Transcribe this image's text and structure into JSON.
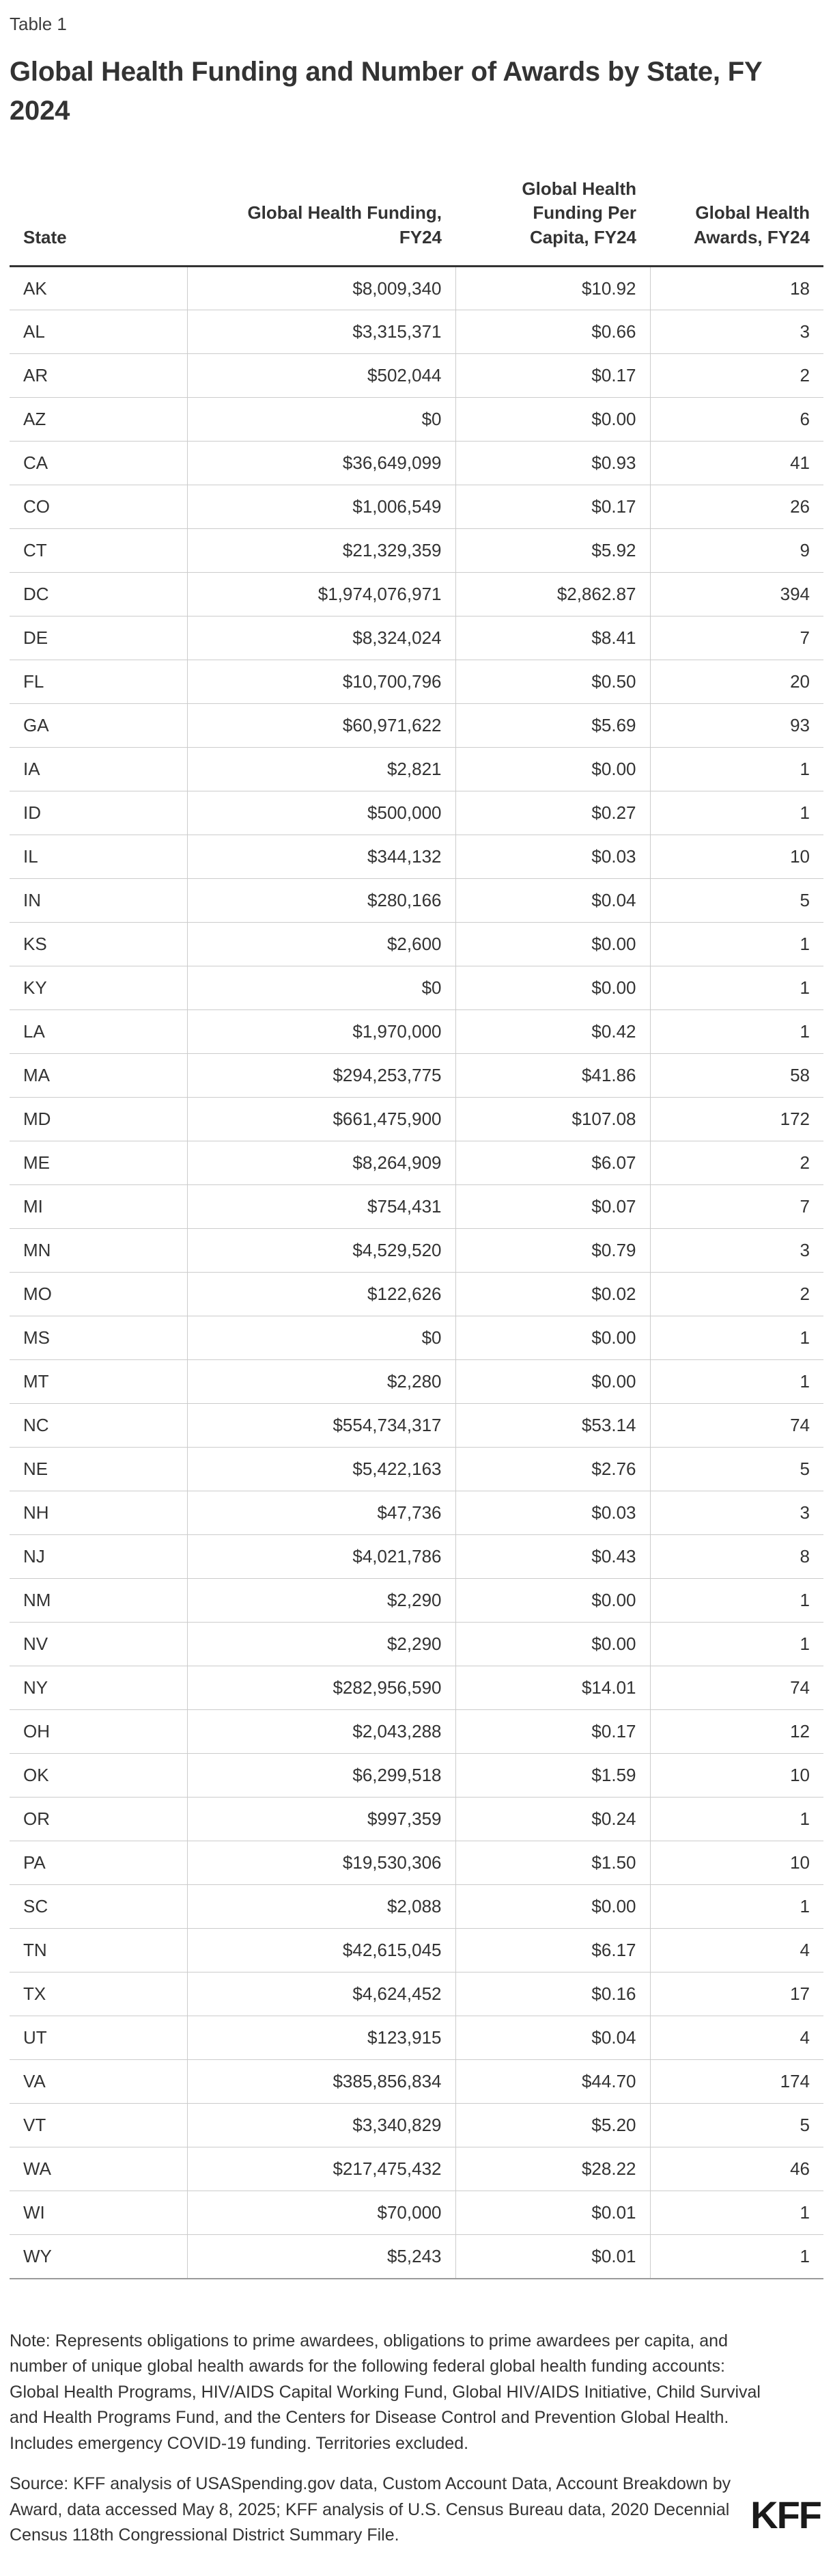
{
  "header": {
    "table_label": "Table 1",
    "title": "Global Health Funding and Number of Awards by State, FY 2024"
  },
  "chart_data": {
    "type": "table",
    "title": "Global Health Funding and Number of Awards by State, FY 2024",
    "columns": [
      "State",
      "Global Health Funding, FY24",
      "Global Health Funding Per Capita, FY24",
      "Global Health Awards, FY24"
    ],
    "rows": [
      [
        "AK",
        "$8,009,340",
        "$10.92",
        "18"
      ],
      [
        "AL",
        "$3,315,371",
        "$0.66",
        "3"
      ],
      [
        "AR",
        "$502,044",
        "$0.17",
        "2"
      ],
      [
        "AZ",
        "$0",
        "$0.00",
        "6"
      ],
      [
        "CA",
        "$36,649,099",
        "$0.93",
        "41"
      ],
      [
        "CO",
        "$1,006,549",
        "$0.17",
        "26"
      ],
      [
        "CT",
        "$21,329,359",
        "$5.92",
        "9"
      ],
      [
        "DC",
        "$1,974,076,971",
        "$2,862.87",
        "394"
      ],
      [
        "DE",
        "$8,324,024",
        "$8.41",
        "7"
      ],
      [
        "FL",
        "$10,700,796",
        "$0.50",
        "20"
      ],
      [
        "GA",
        "$60,971,622",
        "$5.69",
        "93"
      ],
      [
        "IA",
        "$2,821",
        "$0.00",
        "1"
      ],
      [
        "ID",
        "$500,000",
        "$0.27",
        "1"
      ],
      [
        "IL",
        "$344,132",
        "$0.03",
        "10"
      ],
      [
        "IN",
        "$280,166",
        "$0.04",
        "5"
      ],
      [
        "KS",
        "$2,600",
        "$0.00",
        "1"
      ],
      [
        "KY",
        "$0",
        "$0.00",
        "1"
      ],
      [
        "LA",
        "$1,970,000",
        "$0.42",
        "1"
      ],
      [
        "MA",
        "$294,253,775",
        "$41.86",
        "58"
      ],
      [
        "MD",
        "$661,475,900",
        "$107.08",
        "172"
      ],
      [
        "ME",
        "$8,264,909",
        "$6.07",
        "2"
      ],
      [
        "MI",
        "$754,431",
        "$0.07",
        "7"
      ],
      [
        "MN",
        "$4,529,520",
        "$0.79",
        "3"
      ],
      [
        "MO",
        "$122,626",
        "$0.02",
        "2"
      ],
      [
        "MS",
        "$0",
        "$0.00",
        "1"
      ],
      [
        "MT",
        "$2,280",
        "$0.00",
        "1"
      ],
      [
        "NC",
        "$554,734,317",
        "$53.14",
        "74"
      ],
      [
        "NE",
        "$5,422,163",
        "$2.76",
        "5"
      ],
      [
        "NH",
        "$47,736",
        "$0.03",
        "3"
      ],
      [
        "NJ",
        "$4,021,786",
        "$0.43",
        "8"
      ],
      [
        "NM",
        "$2,290",
        "$0.00",
        "1"
      ],
      [
        "NV",
        "$2,290",
        "$0.00",
        "1"
      ],
      [
        "NY",
        "$282,956,590",
        "$14.01",
        "74"
      ],
      [
        "OH",
        "$2,043,288",
        "$0.17",
        "12"
      ],
      [
        "OK",
        "$6,299,518",
        "$1.59",
        "10"
      ],
      [
        "OR",
        "$997,359",
        "$0.24",
        "1"
      ],
      [
        "PA",
        "$19,530,306",
        "$1.50",
        "10"
      ],
      [
        "SC",
        "$2,088",
        "$0.00",
        "1"
      ],
      [
        "TN",
        "$42,615,045",
        "$6.17",
        "4"
      ],
      [
        "TX",
        "$4,624,452",
        "$0.16",
        "17"
      ],
      [
        "UT",
        "$123,915",
        "$0.04",
        "4"
      ],
      [
        "VA",
        "$385,856,834",
        "$44.70",
        "174"
      ],
      [
        "VT",
        "$3,340,829",
        "$5.20",
        "5"
      ],
      [
        "WA",
        "$217,475,432",
        "$28.22",
        "46"
      ],
      [
        "WI",
        "$70,000",
        "$0.01",
        "1"
      ],
      [
        "WY",
        "$5,243",
        "$0.01",
        "1"
      ]
    ]
  },
  "footer": {
    "note": "Note: Represents obligations to prime awardees, obligations to prime awardees per capita, and number of unique global health awards for the following federal global health funding accounts: Global Health Programs, HIV/AIDS Capital Working Fund, Global HIV/AIDS Initiative, Child Survival and Health Programs Fund, and the Centers for Disease Control and Prevention Global Health. Includes emergency COVID-19 funding. Territories excluded.",
    "source": "Source: KFF analysis of USASpending.gov data, Custom Account Data, Account Breakdown by Award, data accessed May 8, 2025; KFF analysis of U.S. Census Bureau data, 2020 Decennial Census 118th Congressional District Summary File.",
    "logo": "KFF"
  },
  "colors": {
    "text_primary": "#333333",
    "border_light": "#cccccc",
    "border_header": "#333333",
    "border_bottom": "#9a9a9a",
    "logo": "#1a1a1a",
    "background": "#ffffff"
  }
}
